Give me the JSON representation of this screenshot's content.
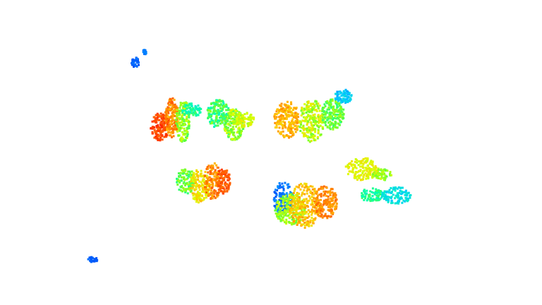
{
  "view": {
    "description_visible_text": "",
    "background_color": "#ffffff",
    "colormap": "jet",
    "colormap_stops": [
      "#0000c8",
      "#0064ff",
      "#00c8ff",
      "#00ffb4",
      "#64ff32",
      "#dcff00",
      "#ffc800",
      "#ff7800",
      "#ff2800"
    ]
  },
  "clusters": [
    {
      "name": "stray-top-left",
      "color_levels": [
        0.12,
        0.15
      ]
    },
    {
      "name": "plant-row1-a",
      "color_levels": [
        0.95,
        0.85,
        0.55,
        0.4
      ]
    },
    {
      "name": "plant-row1-b",
      "color_levels": [
        0.45,
        0.55,
        0.62
      ]
    },
    {
      "name": "plant-row1-c",
      "color_levels": [
        0.78,
        0.6,
        0.5,
        0.25
      ]
    },
    {
      "name": "plant-row2-a",
      "color_levels": [
        0.5,
        0.7,
        0.85,
        0.92
      ]
    },
    {
      "name": "plant-row2-b",
      "color_levels": [
        0.15,
        0.55,
        0.75,
        0.85
      ]
    },
    {
      "name": "plant-row2-c",
      "color_levels": [
        0.65,
        0.55,
        0.4,
        0.3
      ]
    },
    {
      "name": "stray-bottom-left",
      "color_levels": [
        0.12
      ]
    }
  ]
}
